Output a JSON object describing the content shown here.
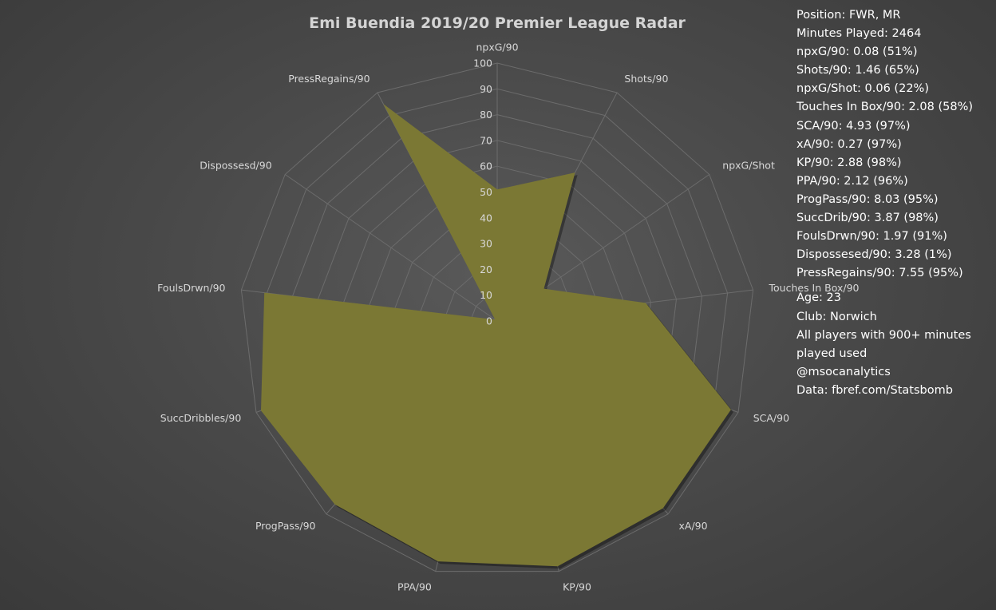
{
  "side_panel": {
    "stats": [
      "Position: FWR, MR",
      "Minutes Played: 2464",
      "npxG/90: 0.08 (51%)",
      "Shots/90: 1.46 (65%)",
      "npxG/Shot: 0.06 (22%)",
      "Touches In Box/90: 2.08 (58%)",
      "SCA/90: 4.93 (97%)",
      "xA/90: 0.27 (97%)",
      "KP/90: 2.88 (98%)",
      "PPA/90: 2.12 (96%)",
      "ProgPass/90: 8.03 (95%)",
      "SuccDrib/90: 3.87 (98%)",
      "FoulsDrwn/90: 1.97 (91%)",
      "Dispossesed/90: 3.28 (1%)",
      "PressRegains/90: 7.55 (95%)"
    ],
    "info": [
      "Age: 23",
      "Club: Norwich",
      "All players with 900+ minutes",
      "played used",
      "@msocanalytics",
      "Data: fbref.com/Statsbomb"
    ]
  },
  "chart_data": {
    "type": "radar",
    "title": "Emi Buendia 2019/20 Premier League Radar",
    "categories": [
      "npxG/90",
      "Shots/90",
      "npxG/Shot",
      "Touches In Box/90",
      "SCA/90",
      "xA/90",
      "KP/90",
      "PPA/90",
      "ProgPass/90",
      "SuccDribbles/90",
      "FoulsDrwn/90",
      "Dispossesd/90",
      "PressRegains/90"
    ],
    "series": [
      {
        "values": [
          51,
          65,
          22,
          58,
          97,
          97,
          98,
          96,
          95,
          98,
          91,
          1,
          95
        ]
      }
    ],
    "rlim": [
      0,
      100
    ],
    "ticks": [
      0,
      10,
      20,
      30,
      40,
      50,
      60,
      70,
      80,
      90,
      100
    ],
    "fill_color": "#7b7834",
    "grid_color": "#6c6c6c",
    "grid": true
  }
}
